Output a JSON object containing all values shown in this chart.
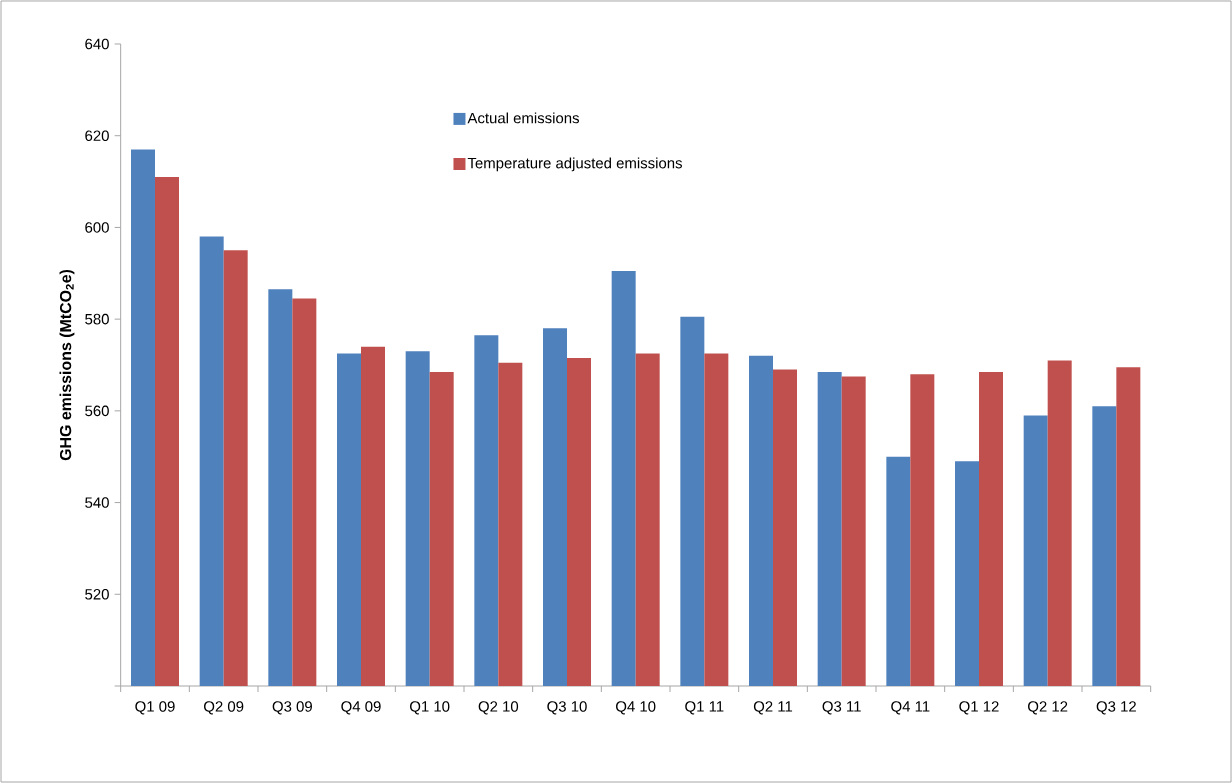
{
  "chart_data": {
    "type": "bar",
    "ylabel": "GHG emissions (MtCO$_{2}$e)",
    "categories": [
      "Q1 09",
      "Q2 09",
      "Q3 09",
      "Q4 09",
      "Q1 10",
      "Q2 10",
      "Q3 10",
      "Q4 10",
      "Q1 11",
      "Q2 11",
      "Q3 11",
      "Q4 11",
      "Q1 12",
      "Q2 12",
      "Q3 12"
    ],
    "series": [
      {
        "name": "Actual emissions",
        "color": "#4f81bd",
        "values": [
          617,
          598,
          586.5,
          572.5,
          573,
          576.5,
          578,
          590.5,
          580.5,
          572,
          568.5,
          550,
          549,
          559,
          561
        ]
      },
      {
        "name": "Temperature adjusted emissions",
        "color": "#c0504d",
        "values": [
          611,
          595,
          584.5,
          574,
          568.5,
          570.5,
          571.5,
          572.5,
          572.5,
          569,
          567.5,
          568,
          568.5,
          571,
          569.5
        ]
      }
    ],
    "ylim": [
      500,
      640
    ],
    "yticks": [
      {
        "value": 500,
        "label": null
      },
      520,
      540,
      560,
      580,
      600,
      620,
      640
    ],
    "grid": false,
    "legend": "top"
  }
}
